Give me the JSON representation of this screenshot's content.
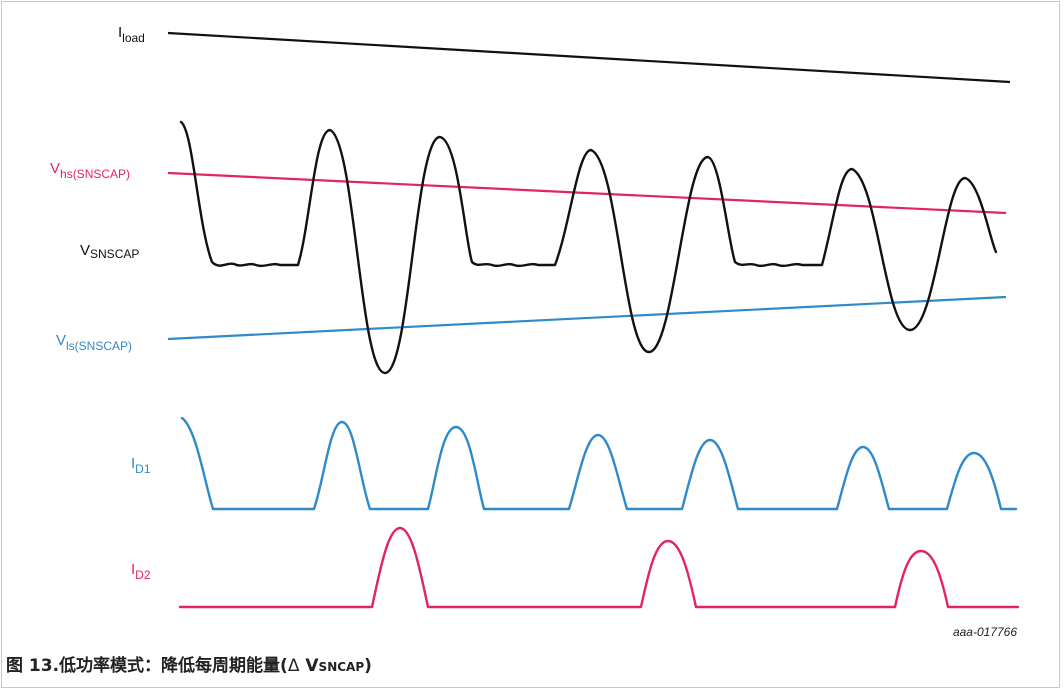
{
  "colors": {
    "black": "#111111",
    "pink": "#e0236a",
    "blue": "#2f8ac9"
  },
  "labels": {
    "iload": {
      "main": "I",
      "sub": "load"
    },
    "vhs": {
      "main": "V",
      "sub": "hs(SNSCAP)"
    },
    "vsnscap": {
      "main": "V",
      "sub": "SNSCAP"
    },
    "vls": {
      "main": "V",
      "sub": "ls(SNSCAP)"
    },
    "id1": {
      "main": "I",
      "sub": "D1"
    },
    "id2": {
      "main": "I",
      "sub": "D2"
    }
  },
  "figure_id": "aaa-017766",
  "caption": {
    "prefix": "图 13.低功率模式：降低每周期能量(",
    "delta": "Δ",
    "v": "V",
    "sub": "SNCAP",
    "suffix": ")"
  }
}
